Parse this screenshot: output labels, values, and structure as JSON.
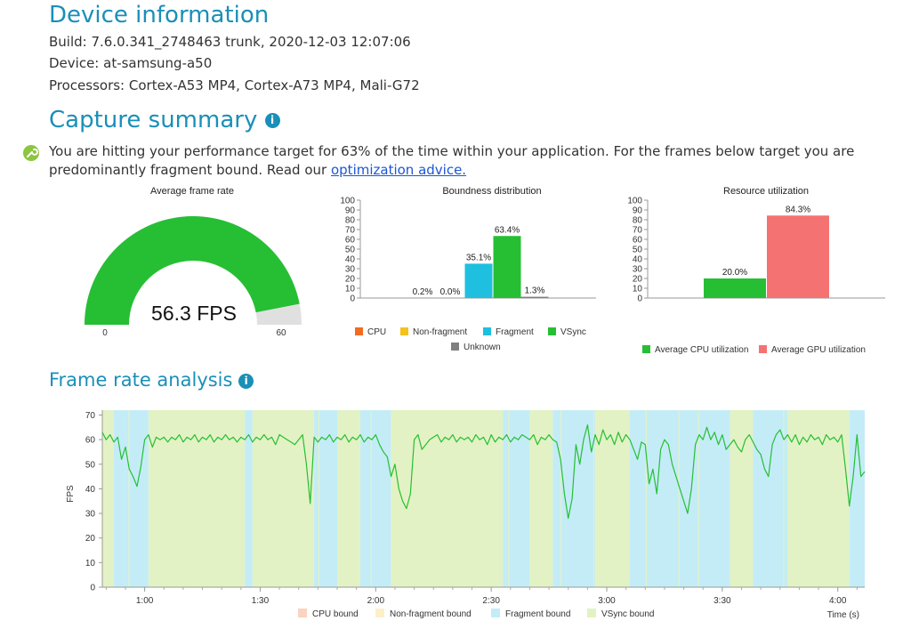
{
  "device": {
    "title": "Device information",
    "build": "Build: 7.6.0.341_2748463 trunk, 2020-12-03 12:07:06",
    "device": "Device: at-samsung-a50",
    "processors": "Processors: Cortex-A53 MP4, Cortex-A73 MP4, Mali-G72"
  },
  "capture": {
    "title": "Capture summary",
    "info_glyph": "i",
    "summary_text": "You are hitting your performance target for 63% of the time within your application. For the frames below target you are predominantly fragment bound. Read our ",
    "link_text": "optimization advice.",
    "icon": "wrench-icon"
  },
  "frame_analysis": {
    "title": "Frame rate analysis",
    "info_glyph": "i"
  },
  "colors": {
    "vsync": "#26bf34",
    "fragment": "#1fbfdf",
    "cpu": "#f26b21",
    "nonfragment": "#f5c21b",
    "unknown": "#7f7f7f",
    "gpu": "#f57272",
    "heading": "#1a8fb8"
  },
  "chart_data": [
    {
      "type": "gauge",
      "title": "Average frame rate",
      "value": 56.3,
      "value_label": "56.3 FPS",
      "min": 0,
      "max": 60,
      "min_label": "0",
      "max_label": "60"
    },
    {
      "type": "bar",
      "title": "Boundness distribution",
      "categories": [
        "CPU",
        "Non-fragment",
        "Fragment",
        "VSync",
        "Unknown"
      ],
      "values": [
        0.2,
        0.0,
        35.1,
        63.4,
        1.3
      ],
      "data_labels": [
        "0.2%",
        "0.0%",
        "35.1%",
        "63.4%",
        "1.3%"
      ],
      "ylim": [
        0,
        100
      ],
      "yticks": [
        "0",
        "10",
        "20",
        "30",
        "40",
        "50",
        "60",
        "70",
        "80",
        "90",
        "100"
      ],
      "legend_placement": "bottom"
    },
    {
      "type": "bar",
      "title": "Resource utilization",
      "categories": [
        "Average CPU utilization",
        "Average GPU utilization"
      ],
      "values": [
        20.0,
        84.3
      ],
      "data_labels": [
        "20.0%",
        "84.3%"
      ],
      "ylim": [
        0,
        100
      ],
      "yticks": [
        "0",
        "10",
        "20",
        "30",
        "40",
        "50",
        "60",
        "70",
        "80",
        "90",
        "100"
      ],
      "legend_placement": "bottom"
    },
    {
      "type": "line",
      "title": "",
      "xlabel": "Time (s)",
      "ylabel": "FPS",
      "xlim": [
        49,
        247
      ],
      "ylim": [
        0,
        72
      ],
      "xtick_values": [
        60,
        90,
        120,
        150,
        180,
        210,
        240
      ],
      "xticks": [
        "1:00",
        "1:30",
        "2:00",
        "2:30",
        "3:00",
        "3:30",
        "4:00"
      ],
      "ytick_values": [
        0,
        10,
        20,
        30,
        40,
        50,
        60,
        70
      ],
      "yticks": [
        "0",
        "10",
        "20",
        "30",
        "40",
        "50",
        "60",
        "70"
      ],
      "legend": [
        "CPU bound",
        "Non-fragment bound",
        "Fragment bound",
        "VSync bound"
      ],
      "legend_colors": [
        "#fcd2c0",
        "#fdf0c8",
        "#c4ecf7",
        "#e3f2c4"
      ],
      "legend_placement": "bottom",
      "background_bands": [
        {
          "start": 49,
          "end": 52,
          "state": "VSync bound"
        },
        {
          "start": 52,
          "end": 55,
          "state": "Fragment bound"
        },
        {
          "start": 55,
          "end": 61,
          "state": "Fragment bound"
        },
        {
          "start": 61,
          "end": 86,
          "state": "VSync bound"
        },
        {
          "start": 86,
          "end": 88,
          "state": "Fragment bound"
        },
        {
          "start": 88,
          "end": 104,
          "state": "VSync bound"
        },
        {
          "start": 104,
          "end": 110,
          "state": "Fragment bound"
        },
        {
          "start": 110,
          "end": 116,
          "state": "VSync bound"
        },
        {
          "start": 116,
          "end": 124,
          "state": "Fragment bound"
        },
        {
          "start": 124,
          "end": 153,
          "state": "VSync bound"
        },
        {
          "start": 153,
          "end": 160,
          "state": "Fragment bound"
        },
        {
          "start": 160,
          "end": 166,
          "state": "VSync bound"
        },
        {
          "start": 166,
          "end": 177,
          "state": "Fragment bound"
        },
        {
          "start": 177,
          "end": 186,
          "state": "VSync bound"
        },
        {
          "start": 186,
          "end": 212,
          "state": "Fragment bound"
        },
        {
          "start": 212,
          "end": 218,
          "state": "VSync bound"
        },
        {
          "start": 218,
          "end": 227,
          "state": "Fragment bound"
        },
        {
          "start": 227,
          "end": 243,
          "state": "VSync bound"
        },
        {
          "start": 243,
          "end": 247,
          "state": "Fragment bound"
        }
      ],
      "series": [
        {
          "color": "#26bf34",
          "points": [
            [
              49,
              63
            ],
            [
              50,
              60
            ],
            [
              51,
              62
            ],
            [
              52,
              59
            ],
            [
              53,
              61
            ],
            [
              54,
              52
            ],
            [
              55,
              57
            ],
            [
              56,
              48
            ],
            [
              57,
              45
            ],
            [
              58,
              41
            ],
            [
              59,
              49
            ],
            [
              60,
              60
            ],
            [
              61,
              62
            ],
            [
              62,
              57
            ],
            [
              63,
              61
            ],
            [
              64,
              60
            ],
            [
              65,
              61
            ],
            [
              66,
              59
            ],
            [
              67,
              61
            ],
            [
              68,
              60
            ],
            [
              69,
              62
            ],
            [
              70,
              59
            ],
            [
              71,
              61
            ],
            [
              72,
              60
            ],
            [
              73,
              62
            ],
            [
              74,
              59
            ],
            [
              75,
              61
            ],
            [
              76,
              60
            ],
            [
              77,
              62
            ],
            [
              78,
              59
            ],
            [
              79,
              61
            ],
            [
              80,
              60
            ],
            [
              81,
              62
            ],
            [
              82,
              60
            ],
            [
              83,
              61
            ],
            [
              84,
              59
            ],
            [
              85,
              61
            ],
            [
              86,
              60
            ],
            [
              87,
              62
            ],
            [
              88,
              59
            ],
            [
              89,
              61
            ],
            [
              90,
              60
            ],
            [
              91,
              62
            ],
            [
              92,
              60
            ],
            [
              93,
              61
            ],
            [
              94,
              58
            ],
            [
              95,
              62
            ],
            [
              96,
              61
            ],
            [
              97,
              60
            ],
            [
              98,
              59
            ],
            [
              99,
              58
            ],
            [
              100,
              60
            ],
            [
              101,
              62
            ],
            [
              102,
              50
            ],
            [
              103,
              34
            ],
            [
              104,
              61
            ],
            [
              105,
              59
            ],
            [
              106,
              61
            ],
            [
              107,
              60
            ],
            [
              108,
              62
            ],
            [
              109,
              59
            ],
            [
              110,
              61
            ],
            [
              111,
              60
            ],
            [
              112,
              62
            ],
            [
              113,
              59
            ],
            [
              114,
              61
            ],
            [
              115,
              60
            ],
            [
              116,
              62
            ],
            [
              117,
              59
            ],
            [
              118,
              61
            ],
            [
              119,
              60
            ],
            [
              120,
              62
            ],
            [
              121,
              58
            ],
            [
              122,
              55
            ],
            [
              123,
              53
            ],
            [
              124,
              45
            ],
            [
              125,
              50
            ],
            [
              126,
              40
            ],
            [
              127,
              35
            ],
            [
              128,
              32
            ],
            [
              129,
              38
            ],
            [
              130,
              60
            ],
            [
              131,
              62
            ],
            [
              132,
              56
            ],
            [
              133,
              58
            ],
            [
              134,
              60
            ],
            [
              135,
              61
            ],
            [
              136,
              62
            ],
            [
              137,
              59
            ],
            [
              138,
              61
            ],
            [
              139,
              60
            ],
            [
              140,
              62
            ],
            [
              141,
              59
            ],
            [
              142,
              61
            ],
            [
              143,
              60
            ],
            [
              144,
              61
            ],
            [
              145,
              59
            ],
            [
              146,
              62
            ],
            [
              147,
              60
            ],
            [
              148,
              61
            ],
            [
              149,
              58
            ],
            [
              150,
              62
            ],
            [
              151,
              59
            ],
            [
              152,
              61
            ],
            [
              153,
              60
            ],
            [
              154,
              62
            ],
            [
              155,
              59
            ],
            [
              156,
              61
            ],
            [
              157,
              60
            ],
            [
              158,
              62
            ],
            [
              159,
              61
            ],
            [
              160,
              60
            ],
            [
              161,
              62
            ],
            [
              162,
              58
            ],
            [
              163,
              61
            ],
            [
              164,
              60
            ],
            [
              165,
              62
            ],
            [
              166,
              60
            ],
            [
              167,
              59
            ],
            [
              168,
              52
            ],
            [
              169,
              38
            ],
            [
              170,
              28
            ],
            [
              171,
              36
            ],
            [
              172,
              58
            ],
            [
              173,
              50
            ],
            [
              174,
              60
            ],
            [
              175,
              66
            ],
            [
              176,
              55
            ],
            [
              177,
              62
            ],
            [
              178,
              58
            ],
            [
              179,
              64
            ],
            [
              180,
              60
            ],
            [
              181,
              62
            ],
            [
              182,
              58
            ],
            [
              183,
              63
            ],
            [
              184,
              59
            ],
            [
              185,
              62
            ],
            [
              186,
              60
            ],
            [
              187,
              56
            ],
            [
              188,
              52
            ],
            [
              189,
              59
            ],
            [
              190,
              58
            ],
            [
              191,
              42
            ],
            [
              192,
              48
            ],
            [
              193,
              38
            ],
            [
              194,
              56
            ],
            [
              195,
              60
            ],
            [
              196,
              58
            ],
            [
              197,
              50
            ],
            [
              198,
              45
            ],
            [
              199,
              40
            ],
            [
              200,
              35
            ],
            [
              201,
              30
            ],
            [
              202,
              40
            ],
            [
              203,
              58
            ],
            [
              204,
              62
            ],
            [
              205,
              60
            ],
            [
              206,
              65
            ],
            [
              207,
              60
            ],
            [
              208,
              63
            ],
            [
              209,
              58
            ],
            [
              210,
              62
            ],
            [
              211,
              56
            ],
            [
              212,
              58
            ],
            [
              213,
              60
            ],
            [
              214,
              57
            ],
            [
              215,
              55
            ],
            [
              216,
              60
            ],
            [
              217,
              62
            ],
            [
              218,
              59
            ],
            [
              219,
              56
            ],
            [
              220,
              54
            ],
            [
              221,
              48
            ],
            [
              222,
              45
            ],
            [
              223,
              58
            ],
            [
              224,
              62
            ],
            [
              225,
              64
            ],
            [
              226,
              60
            ],
            [
              227,
              62
            ],
            [
              228,
              59
            ],
            [
              229,
              62
            ],
            [
              230,
              58
            ],
            [
              231,
              61
            ],
            [
              232,
              59
            ],
            [
              233,
              62
            ],
            [
              234,
              60
            ],
            [
              235,
              61
            ],
            [
              236,
              58
            ],
            [
              237,
              62
            ],
            [
              238,
              60
            ],
            [
              239,
              61
            ],
            [
              240,
              59
            ],
            [
              241,
              62
            ],
            [
              242,
              48
            ],
            [
              243,
              33
            ],
            [
              244,
              45
            ],
            [
              245,
              62
            ],
            [
              246,
              45
            ],
            [
              247,
              47
            ]
          ]
        }
      ]
    }
  ]
}
